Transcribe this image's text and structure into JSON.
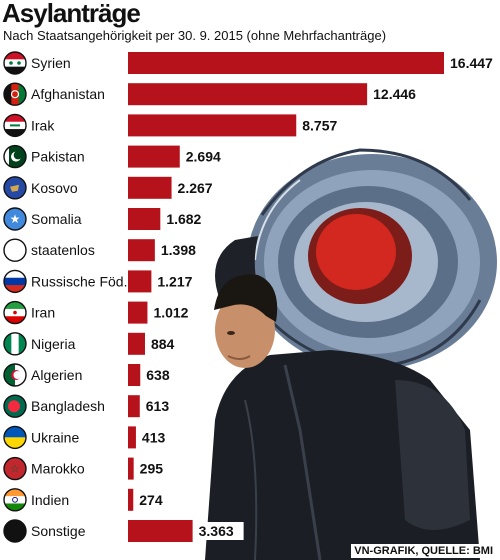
{
  "header": {
    "title": "Asylanträge",
    "subtitle": "Nach Staatsangehörigkeit per 30. 9. 2015 (ohne Mehrfachanträge)"
  },
  "credit": "VN-GRAFIK, QUELLE: BMI",
  "colors": {
    "bar": "#b5121b",
    "text": "#111111"
  },
  "chart_data": {
    "type": "bar",
    "orientation": "horizontal",
    "categories": [
      "Syrien",
      "Afghanistan",
      "Irak",
      "Pakistan",
      "Kosovo",
      "Somalia",
      "staatenlos",
      "Russische Föd.",
      "Iran",
      "Nigeria",
      "Algerien",
      "Bangladesh",
      "Ukraine",
      "Marokko",
      "Indien",
      "Sonstige"
    ],
    "values": [
      16447,
      12446,
      8757,
      2694,
      2267,
      1682,
      1398,
      1217,
      1012,
      884,
      638,
      613,
      413,
      295,
      274,
      3363
    ],
    "value_labels": [
      "16.447",
      "12.446",
      "8.757",
      "2.694",
      "2.267",
      "1.682",
      "1.398",
      "1.217",
      "1.012",
      "884",
      "638",
      "613",
      "413",
      "295",
      "274",
      "3.363"
    ],
    "flag_icons": [
      "syria-flag-icon",
      "afghanistan-flag-icon",
      "iraq-flag-icon",
      "pakistan-flag-icon",
      "kosovo-flag-icon",
      "somalia-flag-icon",
      "stateless-icon",
      "russia-flag-icon",
      "iran-flag-icon",
      "nigeria-flag-icon",
      "algeria-flag-icon",
      "bangladesh-flag-icon",
      "ukraine-flag-icon",
      "morocco-flag-icon",
      "india-flag-icon",
      "other-icon"
    ],
    "grid": false,
    "legend": "none"
  }
}
